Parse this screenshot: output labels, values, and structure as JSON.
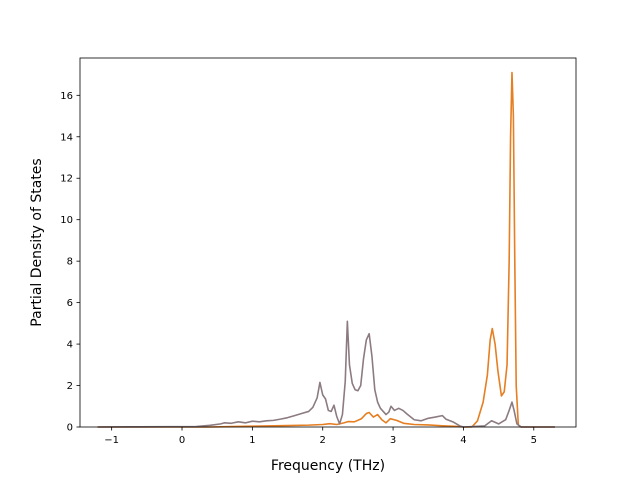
{
  "chart_data": {
    "type": "line",
    "title": "",
    "xlabel": "Frequency (THz)",
    "ylabel": "Partial Density of States",
    "xlim": [
      -1.45,
      5.6
    ],
    "ylim": [
      0,
      17.8
    ],
    "xticks": [
      -1,
      0,
      1,
      2,
      3,
      4,
      5
    ],
    "yticks": [
      0,
      2,
      4,
      6,
      8,
      10,
      12,
      14,
      16
    ],
    "grid": false,
    "legend": "none",
    "series": [
      {
        "color": "#e67e22",
        "points": [
          [
            -1.2,
            0
          ],
          [
            0.4,
            0
          ],
          [
            0.7,
            0.02
          ],
          [
            1.0,
            0.04
          ],
          [
            1.5,
            0.07
          ],
          [
            1.8,
            0.09
          ],
          [
            2.0,
            0.12
          ],
          [
            2.1,
            0.16
          ],
          [
            2.2,
            0.12
          ],
          [
            2.3,
            0.2
          ],
          [
            2.36,
            0.26
          ],
          [
            2.45,
            0.25
          ],
          [
            2.55,
            0.4
          ],
          [
            2.62,
            0.65
          ],
          [
            2.66,
            0.7
          ],
          [
            2.72,
            0.48
          ],
          [
            2.78,
            0.6
          ],
          [
            2.84,
            0.35
          ],
          [
            2.9,
            0.2
          ],
          [
            2.96,
            0.4
          ],
          [
            3.05,
            0.32
          ],
          [
            3.15,
            0.18
          ],
          [
            3.3,
            0.12
          ],
          [
            3.5,
            0.1
          ],
          [
            3.7,
            0.06
          ],
          [
            3.9,
            0.03
          ],
          [
            4.0,
            0.0
          ],
          [
            4.12,
            0.0
          ],
          [
            4.2,
            0.3
          ],
          [
            4.28,
            1.2
          ],
          [
            4.34,
            2.5
          ],
          [
            4.38,
            4.2
          ],
          [
            4.41,
            4.75
          ],
          [
            4.45,
            4.0
          ],
          [
            4.49,
            2.7
          ],
          [
            4.54,
            1.5
          ],
          [
            4.58,
            1.7
          ],
          [
            4.62,
            3.0
          ],
          [
            4.65,
            8.0
          ],
          [
            4.67,
            14.0
          ],
          [
            4.69,
            17.1
          ],
          [
            4.71,
            15.0
          ],
          [
            4.73,
            8.0
          ],
          [
            4.75,
            2.0
          ],
          [
            4.78,
            0.1
          ],
          [
            4.82,
            0
          ],
          [
            5.3,
            0
          ]
        ]
      },
      {
        "color": "#8c7b80",
        "points": [
          [
            -1.2,
            0
          ],
          [
            -0.6,
            0.01
          ],
          [
            0.2,
            0.02
          ],
          [
            0.4,
            0.08
          ],
          [
            0.55,
            0.15
          ],
          [
            0.6,
            0.2
          ],
          [
            0.7,
            0.18
          ],
          [
            0.8,
            0.25
          ],
          [
            0.9,
            0.2
          ],
          [
            1.0,
            0.28
          ],
          [
            1.1,
            0.25
          ],
          [
            1.2,
            0.3
          ],
          [
            1.3,
            0.32
          ],
          [
            1.4,
            0.38
          ],
          [
            1.5,
            0.45
          ],
          [
            1.6,
            0.55
          ],
          [
            1.7,
            0.65
          ],
          [
            1.8,
            0.75
          ],
          [
            1.86,
            0.95
          ],
          [
            1.92,
            1.4
          ],
          [
            1.96,
            2.15
          ],
          [
            2.0,
            1.55
          ],
          [
            2.04,
            1.35
          ],
          [
            2.08,
            0.8
          ],
          [
            2.12,
            0.75
          ],
          [
            2.16,
            1.05
          ],
          [
            2.2,
            0.5
          ],
          [
            2.24,
            0.15
          ],
          [
            2.28,
            0.6
          ],
          [
            2.32,
            2.2
          ],
          [
            2.35,
            5.1
          ],
          [
            2.38,
            3.0
          ],
          [
            2.42,
            2.1
          ],
          [
            2.46,
            1.8
          ],
          [
            2.5,
            1.75
          ],
          [
            2.54,
            2.0
          ],
          [
            2.58,
            3.3
          ],
          [
            2.62,
            4.2
          ],
          [
            2.66,
            4.5
          ],
          [
            2.7,
            3.4
          ],
          [
            2.74,
            1.8
          ],
          [
            2.78,
            1.2
          ],
          [
            2.82,
            0.9
          ],
          [
            2.86,
            0.75
          ],
          [
            2.9,
            0.6
          ],
          [
            2.94,
            0.72
          ],
          [
            2.97,
            1.0
          ],
          [
            3.02,
            0.8
          ],
          [
            3.08,
            0.9
          ],
          [
            3.14,
            0.8
          ],
          [
            3.2,
            0.62
          ],
          [
            3.3,
            0.35
          ],
          [
            3.4,
            0.3
          ],
          [
            3.5,
            0.42
          ],
          [
            3.6,
            0.48
          ],
          [
            3.7,
            0.55
          ],
          [
            3.75,
            0.38
          ],
          [
            3.85,
            0.25
          ],
          [
            3.95,
            0.05
          ],
          [
            4.0,
            0.0
          ],
          [
            4.3,
            0.05
          ],
          [
            4.4,
            0.3
          ],
          [
            4.5,
            0.15
          ],
          [
            4.6,
            0.35
          ],
          [
            4.65,
            0.8
          ],
          [
            4.69,
            1.2
          ],
          [
            4.72,
            0.8
          ],
          [
            4.76,
            0.15
          ],
          [
            4.82,
            0
          ],
          [
            5.3,
            0
          ]
        ]
      }
    ]
  }
}
